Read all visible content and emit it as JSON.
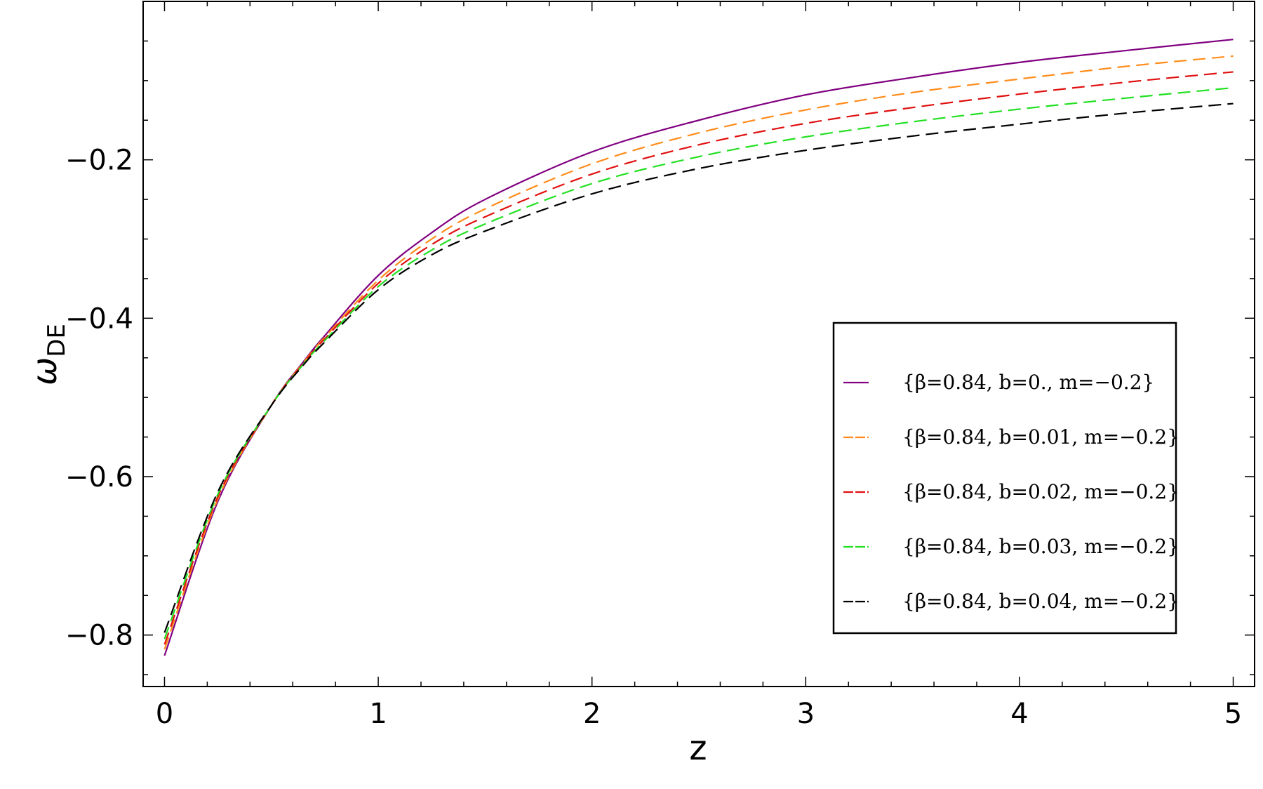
{
  "chart_data": {
    "type": "line",
    "title": "",
    "xlabel": "z",
    "ylabel": "ω",
    "ylabel_sub": "DE",
    "xlim": [
      -0.1,
      5.1
    ],
    "ylim": [
      -0.865,
      -0.0
    ],
    "x_ticks": [
      0,
      1,
      2,
      3,
      4,
      5
    ],
    "x_tick_labels": [
      "0",
      "1",
      "2",
      "3",
      "4",
      "5"
    ],
    "y_ticks": [
      -0.8,
      -0.6,
      -0.4,
      -0.2
    ],
    "y_tick_labels": [
      "−0.8",
      "−0.6",
      "−0.4",
      "−0.2"
    ],
    "grid": false,
    "legend_position": "center-right",
    "x": [
      0,
      0.25,
      0.5,
      0.65,
      0.75,
      1.0,
      1.25,
      1.5,
      2.0,
      2.5,
      3.0,
      3.5,
      4.0,
      4.5,
      5.0
    ],
    "series": [
      {
        "name": "{β=0.84, b=0., m=−0.2}",
        "color": "#800080",
        "dash": "solid",
        "values": [
          -0.826,
          -0.631,
          -0.51,
          -0.455,
          -0.422,
          -0.346,
          -0.292,
          -0.25,
          -0.19,
          -0.15,
          -0.118,
          -0.096,
          -0.077,
          -0.062,
          -0.048
        ]
      },
      {
        "name": "{β=0.84, b=0.01, m=−0.2}",
        "color": "#ff8c1a",
        "dash": "dashed",
        "values": [
          -0.818,
          -0.628,
          -0.51,
          -0.456,
          -0.424,
          -0.352,
          -0.3,
          -0.262,
          -0.205,
          -0.166,
          -0.137,
          -0.115,
          -0.098,
          -0.082,
          -0.069
        ]
      },
      {
        "name": "{β=0.84, b=0.02, m=−0.2}",
        "color": "#e01010",
        "dash": "dashed",
        "values": [
          -0.812,
          -0.625,
          -0.51,
          -0.457,
          -0.426,
          -0.356,
          -0.307,
          -0.272,
          -0.218,
          -0.181,
          -0.154,
          -0.134,
          -0.117,
          -0.102,
          -0.089
        ]
      },
      {
        "name": "{β=0.84, b=0.03, m=−0.2}",
        "color": "#22e022",
        "dash": "dashed",
        "values": [
          -0.805,
          -0.622,
          -0.51,
          -0.458,
          -0.428,
          -0.36,
          -0.314,
          -0.281,
          -0.23,
          -0.196,
          -0.171,
          -0.152,
          -0.136,
          -0.122,
          -0.109
        ]
      },
      {
        "name": "{β=0.84, b=0.04, m=−0.2}",
        "color": "#000000",
        "dash": "dashed",
        "values": [
          -0.797,
          -0.619,
          -0.51,
          -0.459,
          -0.43,
          -0.364,
          -0.32,
          -0.29,
          -0.243,
          -0.211,
          -0.188,
          -0.17,
          -0.155,
          -0.141,
          -0.129
        ]
      }
    ]
  }
}
